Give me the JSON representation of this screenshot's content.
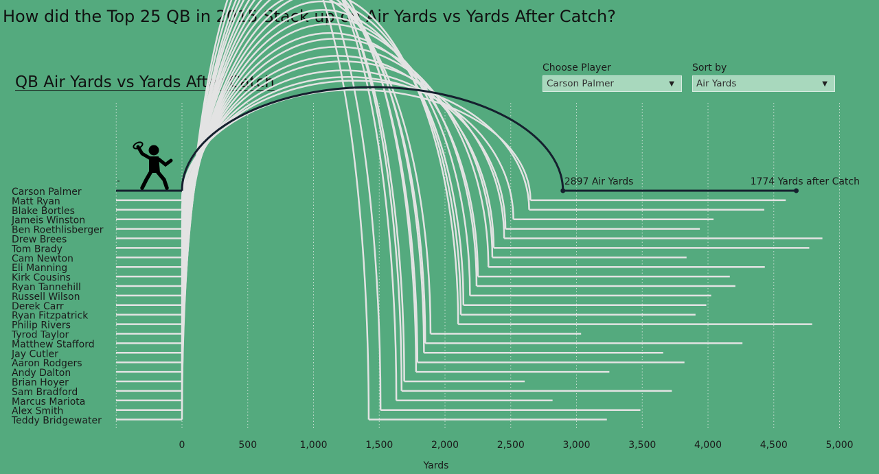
{
  "page": {
    "title": "How did the Top 25 QB in 2015 Stack up on Air Yards vs Yards After Catch?",
    "subtitle": "QB Air Yards vs Yards After Catch"
  },
  "filters": {
    "player": {
      "label": "Choose Player",
      "value": "Carson Palmer"
    },
    "sort": {
      "label": "Sort by",
      "value": "Air Yards"
    }
  },
  "colors": {
    "background": "#54aa7e",
    "arc": "#e3e3e3",
    "highlight": "#15202e",
    "grid": "#c9ddd2"
  },
  "icons": {
    "player_icon": "quarterback-throwing-icon"
  },
  "chart_data": {
    "type": "arc-bar",
    "xlabel": "Yards",
    "xlim": [
      -500,
      5100
    ],
    "xticks": [
      "0",
      "500",
      "1,000",
      "1,500",
      "2,000",
      "2,500",
      "3,000",
      "3,500",
      "4,000",
      "4,500",
      "5,000"
    ],
    "xtick_values": [
      0,
      500,
      1000,
      1500,
      2000,
      2500,
      3000,
      3500,
      4000,
      4500,
      5000
    ],
    "grid": true,
    "highlight": "Carson Palmer",
    "annotations": {
      "air_yards": "2897 Air Yards",
      "yac": "1774 Yards after Catch"
    },
    "series": [
      {
        "name": "Air Yards",
        "unit": "yards"
      },
      {
        "name": "Yards after Catch",
        "unit": "yards"
      }
    ],
    "players": [
      {
        "name": "Carson Palmer",
        "air_yards": 2897,
        "total_yards": 4671
      },
      {
        "name": "Matt Ryan",
        "air_yards": 2650,
        "total_yards": 4591
      },
      {
        "name": "Blake Bortles",
        "air_yards": 2640,
        "total_yards": 4428
      },
      {
        "name": "Jameis Winston",
        "air_yards": 2520,
        "total_yards": 4042
      },
      {
        "name": "Ben Roethlisberger",
        "air_yards": 2460,
        "total_yards": 3938
      },
      {
        "name": "Drew Brees",
        "air_yards": 2450,
        "total_yards": 4870
      },
      {
        "name": "Tom Brady",
        "air_yards": 2370,
        "total_yards": 4770
      },
      {
        "name": "Cam Newton",
        "air_yards": 2360,
        "total_yards": 3837
      },
      {
        "name": "Eli Manning",
        "air_yards": 2330,
        "total_yards": 4432
      },
      {
        "name": "Kirk Cousins",
        "air_yards": 2250,
        "total_yards": 4166
      },
      {
        "name": "Ryan Tannehill",
        "air_yards": 2240,
        "total_yards": 4208
      },
      {
        "name": "Russell Wilson",
        "air_yards": 2190,
        "total_yards": 4024
      },
      {
        "name": "Derek Carr",
        "air_yards": 2140,
        "total_yards": 3987
      },
      {
        "name": "Ryan Fitzpatrick",
        "air_yards": 2120,
        "total_yards": 3905
      },
      {
        "name": "Philip Rivers",
        "air_yards": 2100,
        "total_yards": 4792
      },
      {
        "name": "Tyrod Taylor",
        "air_yards": 1890,
        "total_yards": 3035
      },
      {
        "name": "Matthew Stafford",
        "air_yards": 1850,
        "total_yards": 4262
      },
      {
        "name": "Jay Cutler",
        "air_yards": 1840,
        "total_yards": 3659
      },
      {
        "name": "Aaron Rodgers",
        "air_yards": 1790,
        "total_yards": 3821
      },
      {
        "name": "Andy Dalton",
        "air_yards": 1780,
        "total_yards": 3250
      },
      {
        "name": "Brian Hoyer",
        "air_yards": 1690,
        "total_yards": 2606
      },
      {
        "name": "Sam Bradford",
        "air_yards": 1670,
        "total_yards": 3725
      },
      {
        "name": "Marcus Mariota",
        "air_yards": 1630,
        "total_yards": 2818
      },
      {
        "name": "Alex Smith",
        "air_yards": 1510,
        "total_yards": 3486
      },
      {
        "name": "Teddy Bridgewater",
        "air_yards": 1420,
        "total_yards": 3231
      }
    ]
  }
}
